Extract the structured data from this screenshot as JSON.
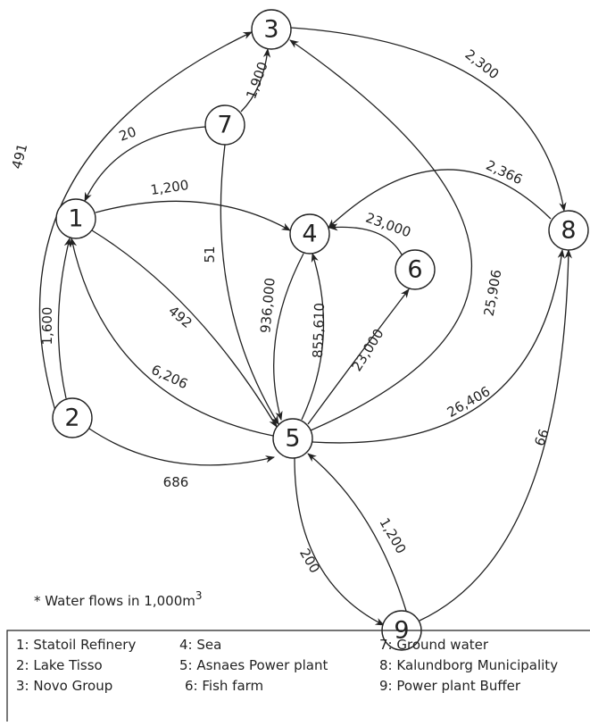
{
  "nodes": [
    {
      "label": "1"
    },
    {
      "label": "2"
    },
    {
      "label": "3"
    },
    {
      "label": "4"
    },
    {
      "label": "5"
    },
    {
      "label": "6"
    },
    {
      "label": "7"
    },
    {
      "label": "8"
    },
    {
      "label": "9"
    }
  ],
  "edges": [
    {
      "label": "491"
    },
    {
      "label": "1,900"
    },
    {
      "label": "2,300"
    },
    {
      "label": "20"
    },
    {
      "label": "1,200"
    },
    {
      "label": "2,366"
    },
    {
      "label": "23,000"
    },
    {
      "label": "51"
    },
    {
      "label": "936,000"
    },
    {
      "label": "855,610"
    },
    {
      "label": "23,000"
    },
    {
      "label": "25,906"
    },
    {
      "label": "492"
    },
    {
      "label": "6,206"
    },
    {
      "label": "1,600"
    },
    {
      "label": "26,406"
    },
    {
      "label": "686"
    },
    {
      "label": "200"
    },
    {
      "label": "1,200"
    },
    {
      "label": "66"
    }
  ],
  "note": {
    "text": "* Water flows in 1,000m",
    "superscript": "3"
  },
  "legend": [
    "1: Statoil Refinery",
    "2: Lake Tisso",
    "3: Novo Group",
    "4: Sea",
    "5: Asnaes Power plant",
    "6: Fish farm",
    "7: Ground water",
    "8: Kalundborg Municipality",
    "9: Power plant Buffer"
  ]
}
